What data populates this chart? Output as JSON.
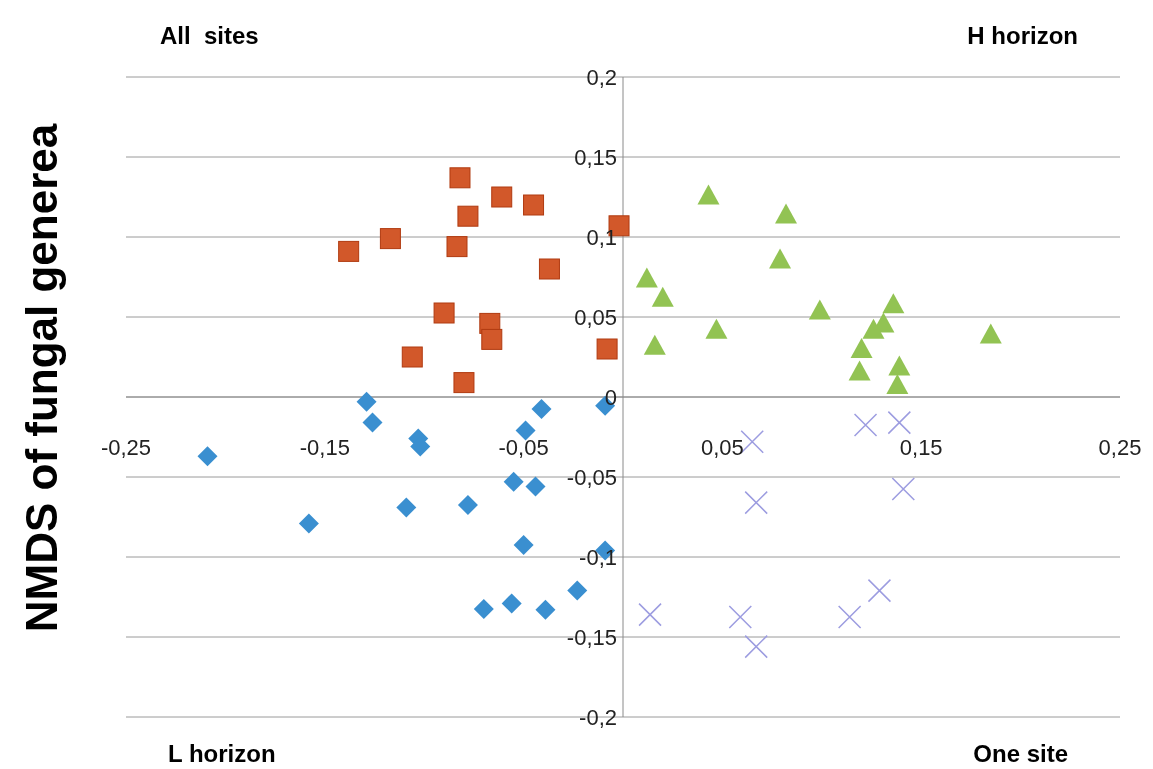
{
  "chart_data": {
    "type": "scatter",
    "ylabel": "NMDS of fungal generea",
    "xlim": [
      -0.25,
      0.25
    ],
    "ylim": [
      -0.2,
      0.2
    ],
    "xticks": [
      {
        "value": -0.25,
        "label": "-0,25"
      },
      {
        "value": -0.15,
        "label": "-0,15"
      },
      {
        "value": -0.05,
        "label": "-0,05"
      },
      {
        "value": 0.05,
        "label": "0,05"
      },
      {
        "value": 0.15,
        "label": "0,15"
      },
      {
        "value": 0.25,
        "label": "0,25"
      }
    ],
    "yticks": [
      {
        "value": -0.2,
        "label": "-0,2"
      },
      {
        "value": -0.15,
        "label": "-0,15"
      },
      {
        "value": -0.1,
        "label": "-0,1"
      },
      {
        "value": -0.05,
        "label": "-0,05"
      },
      0,
      {
        "value": 0.05,
        "label": "0,05"
      },
      {
        "value": 0.1,
        "label": "0,1"
      },
      {
        "value": 0.15,
        "label": "0,15"
      },
      {
        "value": 0.2,
        "label": "0,2"
      }
    ],
    "grid": "y",
    "annotations": [
      "All  sites",
      "H horizon",
      "L horizon",
      "One site"
    ],
    "series": [
      {
        "color": "#d2582a",
        "marker": "square",
        "x": [
          -0.138,
          -0.117,
          -0.082,
          -0.078,
          -0.0835,
          -0.061,
          -0.045,
          -0.037,
          -0.002,
          -0.09,
          -0.067,
          -0.066,
          -0.106,
          -0.08,
          -0.008
        ],
        "values": [
          0.091,
          0.099,
          0.137,
          0.113,
          0.094,
          0.125,
          0.12,
          0.08,
          0.107,
          0.0525,
          0.046,
          0.036,
          0.025,
          0.009,
          0.03
        ]
      },
      {
        "color": "#92c353",
        "marker": "triangle",
        "x": [
          0.043,
          0.082,
          0.012,
          0.02,
          0.079,
          0.016,
          0.047,
          0.099,
          0.136,
          0.131,
          0.126,
          0.12,
          0.119,
          0.139,
          0.138,
          0.185
        ],
        "values": [
          0.126,
          0.114,
          0.074,
          0.062,
          0.086,
          0.032,
          0.042,
          0.054,
          0.058,
          0.046,
          0.042,
          0.03,
          0.016,
          0.019,
          0.0075,
          0.039
        ]
      },
      {
        "color": "#3a8fd0",
        "marker": "diamond",
        "x": [
          -0.209,
          -0.129,
          -0.126,
          -0.103,
          -0.102,
          -0.158,
          -0.109,
          -0.078,
          -0.049,
          -0.041,
          -0.055,
          -0.044,
          -0.05,
          -0.07,
          -0.056,
          -0.039,
          -0.023,
          -0.009,
          -0.009
        ],
        "values": [
          -0.037,
          -0.003,
          -0.016,
          -0.026,
          -0.031,
          -0.079,
          -0.069,
          -0.0675,
          -0.021,
          -0.0075,
          -0.053,
          -0.056,
          -0.0925,
          -0.1325,
          -0.129,
          -0.133,
          -0.121,
          -0.0055,
          -0.096
        ]
      },
      {
        "color": "#9c9ce0",
        "marker": "cross",
        "x": [
          0.065,
          0.122,
          0.139,
          0.067,
          0.141,
          0.0136,
          0.059,
          0.067,
          0.114,
          0.129
        ],
        "values": [
          -0.028,
          -0.0175,
          -0.016,
          -0.066,
          -0.0575,
          -0.136,
          -0.1375,
          -0.156,
          -0.1375,
          -0.121
        ]
      }
    ]
  }
}
